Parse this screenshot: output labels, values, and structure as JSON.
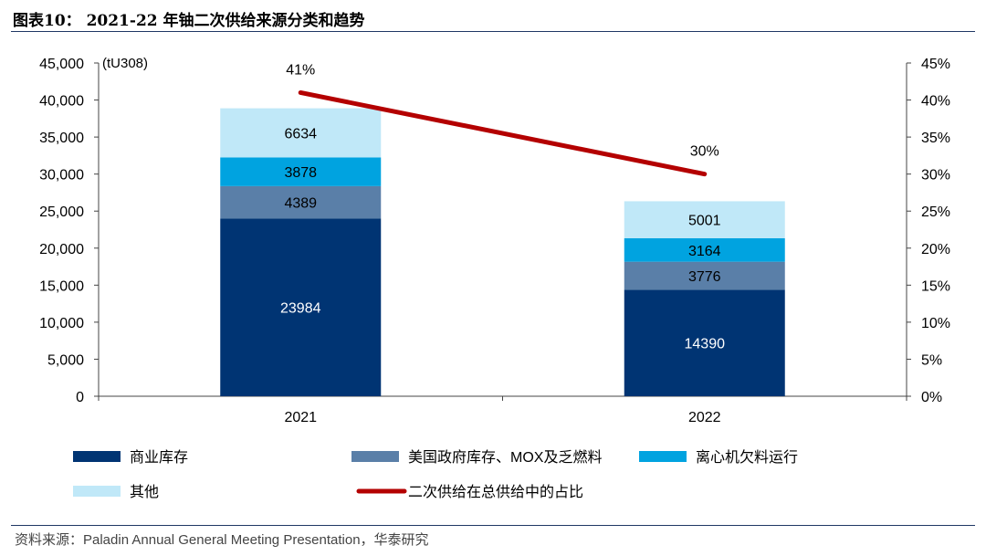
{
  "figure": {
    "title": "图表10： 2021-22 年铀二次供给来源分类和趋势",
    "source": "资料来源：Paladin Annual General Meeting Presentation，华泰研究"
  },
  "chart_data": {
    "type": "bar",
    "stacked": true,
    "categories": [
      "2021",
      "2022"
    ],
    "unit_label": "(tU308)",
    "y_left": {
      "lim": [
        0,
        45000
      ],
      "ticks": [
        0,
        5000,
        10000,
        15000,
        20000,
        25000,
        30000,
        35000,
        40000,
        45000
      ],
      "tick_labels": [
        "0",
        "5,000",
        "10,000",
        "15,000",
        "20,000",
        "25,000",
        "30,000",
        "35,000",
        "40,000",
        "45,000"
      ]
    },
    "y_right": {
      "lim": [
        0,
        45
      ],
      "ticks": [
        0,
        5,
        10,
        15,
        20,
        25,
        30,
        35,
        40,
        45
      ],
      "tick_labels": [
        "0%",
        "5%",
        "10%",
        "15%",
        "20%",
        "25%",
        "30%",
        "35%",
        "40%",
        "45%"
      ]
    },
    "series": [
      {
        "name": "商业库存",
        "values": [
          23984,
          14390
        ],
        "color": "#003473",
        "label_color": "#ffffff"
      },
      {
        "name": "美国政府库存、MOX及乏燃料",
        "values": [
          4389,
          3776
        ],
        "color": "#5a7fa8",
        "label_color": "#000000"
      },
      {
        "name": "离心机欠料运行",
        "values": [
          3878,
          3164
        ],
        "color": "#00a3e0",
        "label_color": "#000000"
      },
      {
        "name": "其他",
        "values": [
          6634,
          5001
        ],
        "color": "#c0e8f8",
        "label_color": "#000000"
      }
    ],
    "line": {
      "name": "二次供给在总供给中的占比",
      "axis": "right",
      "values": [
        41,
        30
      ],
      "labels": [
        "41%",
        "30%"
      ],
      "color": "#b40000"
    },
    "grid": false,
    "legend_position": "bottom"
  }
}
